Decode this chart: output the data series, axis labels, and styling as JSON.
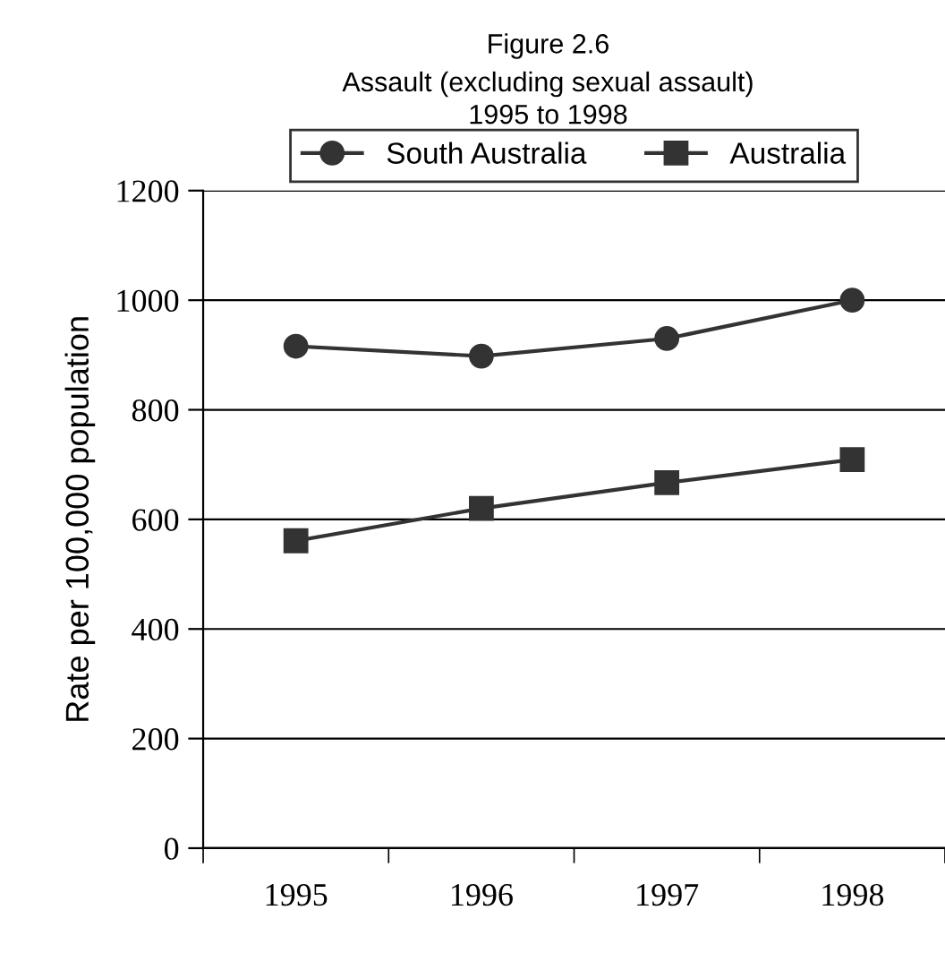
{
  "chart_data": {
    "type": "line",
    "title": "Figure 2.6",
    "subtitle": "Assault (excluding sexual assault)\n1995 to 1998",
    "ylabel": "Rate per 100,000 population",
    "categories": [
      "1995",
      "1996",
      "1997",
      "1998"
    ],
    "series": [
      {
        "name": "South Australia",
        "color": "#333333",
        "marker": "circle",
        "values": [
          916,
          898,
          930,
          1000
        ]
      },
      {
        "name": "Australia",
        "color": "#333333",
        "marker": "square",
        "values": [
          561,
          620,
          667,
          709
        ]
      }
    ],
    "ylim": [
      0,
      1200
    ],
    "yticks": [
      0,
      200,
      400,
      600,
      800,
      1000,
      1200
    ],
    "grid": "y",
    "legend": "top"
  }
}
